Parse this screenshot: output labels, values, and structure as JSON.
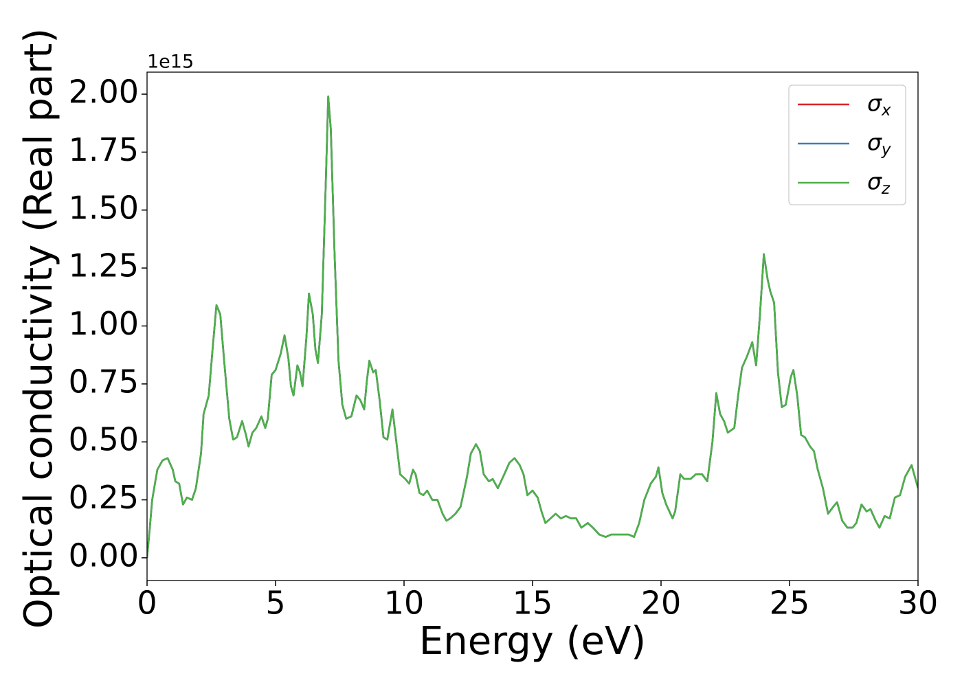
{
  "chart_data": {
    "type": "line",
    "xlabel": "Energy (eV)",
    "ylabel": "Optical conductivity (Real part)",
    "y_offset_text": "1e15",
    "x": [
      0,
      0.1,
      0.2,
      0.4,
      0.6,
      0.8,
      1.0,
      1.1,
      1.25,
      1.4,
      1.55,
      1.75,
      1.9,
      2.1,
      2.2,
      2.4,
      2.55,
      2.7,
      2.85,
      3.0,
      3.2,
      3.35,
      3.5,
      3.7,
      3.85,
      3.95,
      4.1,
      4.25,
      4.45,
      4.6,
      4.7,
      4.85,
      5.0,
      5.2,
      5.35,
      5.5,
      5.6,
      5.7,
      5.85,
      5.95,
      6.05,
      6.2,
      6.3,
      6.45,
      6.55,
      6.65,
      6.8,
      6.95,
      7.05,
      7.15,
      7.3,
      7.45,
      7.6,
      7.75,
      7.95,
      8.15,
      8.3,
      8.45,
      8.55,
      8.65,
      8.8,
      8.9,
      9.05,
      9.2,
      9.35,
      9.55,
      9.7,
      9.85,
      10.05,
      10.2,
      10.35,
      10.45,
      10.6,
      10.75,
      10.9,
      11.1,
      11.3,
      11.5,
      11.65,
      11.8,
      12.0,
      12.2,
      12.45,
      12.6,
      12.8,
      12.95,
      13.1,
      13.3,
      13.45,
      13.65,
      13.9,
      14.1,
      14.3,
      14.5,
      14.65,
      14.8,
      15.0,
      15.2,
      15.35,
      15.5,
      15.7,
      15.9,
      16.1,
      16.3,
      16.5,
      16.7,
      16.9,
      17.15,
      17.35,
      17.6,
      17.85,
      18.05,
      18.3,
      18.55,
      18.75,
      18.95,
      19.15,
      19.35,
      19.6,
      19.8,
      19.9,
      20.05,
      20.2,
      20.45,
      20.55,
      20.75,
      20.9,
      21.15,
      21.35,
      21.6,
      21.8,
      22.0,
      22.15,
      22.3,
      22.45,
      22.6,
      22.85,
      23.0,
      23.15,
      23.35,
      23.55,
      23.7,
      23.85,
      24.0,
      24.15,
      24.25,
      24.4,
      24.55,
      24.7,
      24.85,
      25.05,
      25.15,
      25.3,
      25.45,
      25.6,
      25.8,
      25.95,
      26.1,
      26.3,
      26.5,
      26.7,
      26.85,
      27.05,
      27.25,
      27.45,
      27.6,
      27.8,
      28.0,
      28.15,
      28.35,
      28.5,
      28.7,
      28.9,
      29.1,
      29.3,
      29.5,
      29.75,
      30.0
    ],
    "series": [
      {
        "name": "σx",
        "color": "#d62728",
        "values": [
          0.0,
          0.12,
          0.25,
          0.38,
          0.42,
          0.43,
          0.38,
          0.33,
          0.32,
          0.23,
          0.26,
          0.25,
          0.3,
          0.45,
          0.62,
          0.7,
          0.9,
          1.09,
          1.05,
          0.85,
          0.6,
          0.51,
          0.52,
          0.59,
          0.53,
          0.48,
          0.54,
          0.56,
          0.61,
          0.56,
          0.6,
          0.79,
          0.81,
          0.88,
          0.96,
          0.86,
          0.74,
          0.7,
          0.83,
          0.8,
          0.74,
          0.95,
          1.14,
          1.05,
          0.9,
          0.84,
          1.05,
          1.6,
          1.99,
          1.85,
          1.3,
          0.85,
          0.66,
          0.6,
          0.61,
          0.7,
          0.68,
          0.64,
          0.76,
          0.85,
          0.8,
          0.81,
          0.68,
          0.52,
          0.51,
          0.64,
          0.5,
          0.36,
          0.34,
          0.32,
          0.38,
          0.36,
          0.28,
          0.27,
          0.29,
          0.25,
          0.25,
          0.19,
          0.16,
          0.17,
          0.19,
          0.22,
          0.35,
          0.45,
          0.49,
          0.46,
          0.36,
          0.33,
          0.34,
          0.3,
          0.36,
          0.41,
          0.43,
          0.4,
          0.36,
          0.27,
          0.29,
          0.26,
          0.2,
          0.15,
          0.17,
          0.19,
          0.17,
          0.18,
          0.17,
          0.17,
          0.13,
          0.15,
          0.13,
          0.1,
          0.09,
          0.1,
          0.1,
          0.1,
          0.1,
          0.09,
          0.15,
          0.25,
          0.32,
          0.35,
          0.39,
          0.28,
          0.23,
          0.17,
          0.2,
          0.36,
          0.34,
          0.34,
          0.36,
          0.36,
          0.33,
          0.5,
          0.71,
          0.62,
          0.59,
          0.54,
          0.56,
          0.7,
          0.82,
          0.87,
          0.93,
          0.83,
          1.05,
          1.31,
          1.2,
          1.15,
          1.1,
          0.8,
          0.65,
          0.66,
          0.78,
          0.81,
          0.7,
          0.53,
          0.52,
          0.48,
          0.46,
          0.38,
          0.3,
          0.19,
          0.22,
          0.24,
          0.16,
          0.13,
          0.13,
          0.15,
          0.23,
          0.2,
          0.21,
          0.16,
          0.13,
          0.18,
          0.17,
          0.26,
          0.27,
          0.35,
          0.4,
          0.3
        ]
      },
      {
        "name": "σy",
        "color": "#3a7dbd",
        "values": [
          0.0,
          0.12,
          0.25,
          0.38,
          0.42,
          0.43,
          0.38,
          0.33,
          0.32,
          0.23,
          0.26,
          0.25,
          0.3,
          0.45,
          0.62,
          0.7,
          0.9,
          1.09,
          1.05,
          0.85,
          0.6,
          0.51,
          0.52,
          0.59,
          0.53,
          0.48,
          0.54,
          0.56,
          0.61,
          0.56,
          0.6,
          0.79,
          0.81,
          0.88,
          0.96,
          0.86,
          0.74,
          0.7,
          0.83,
          0.8,
          0.74,
          0.95,
          1.14,
          1.05,
          0.9,
          0.84,
          1.05,
          1.6,
          1.99,
          1.85,
          1.3,
          0.85,
          0.66,
          0.6,
          0.61,
          0.7,
          0.68,
          0.64,
          0.76,
          0.85,
          0.8,
          0.81,
          0.68,
          0.52,
          0.51,
          0.64,
          0.5,
          0.36,
          0.34,
          0.32,
          0.38,
          0.36,
          0.28,
          0.27,
          0.29,
          0.25,
          0.25,
          0.19,
          0.16,
          0.17,
          0.19,
          0.22,
          0.35,
          0.45,
          0.49,
          0.46,
          0.36,
          0.33,
          0.34,
          0.3,
          0.36,
          0.41,
          0.43,
          0.4,
          0.36,
          0.27,
          0.29,
          0.26,
          0.2,
          0.15,
          0.17,
          0.19,
          0.17,
          0.18,
          0.17,
          0.17,
          0.13,
          0.15,
          0.13,
          0.1,
          0.09,
          0.1,
          0.1,
          0.1,
          0.1,
          0.09,
          0.15,
          0.25,
          0.32,
          0.35,
          0.39,
          0.28,
          0.23,
          0.17,
          0.2,
          0.36,
          0.34,
          0.34,
          0.36,
          0.36,
          0.33,
          0.5,
          0.71,
          0.62,
          0.59,
          0.54,
          0.56,
          0.7,
          0.82,
          0.87,
          0.93,
          0.83,
          1.05,
          1.31,
          1.2,
          1.15,
          1.1,
          0.8,
          0.65,
          0.66,
          0.78,
          0.81,
          0.7,
          0.53,
          0.52,
          0.48,
          0.46,
          0.38,
          0.3,
          0.19,
          0.22,
          0.24,
          0.16,
          0.13,
          0.13,
          0.15,
          0.23,
          0.2,
          0.21,
          0.16,
          0.13,
          0.18,
          0.17,
          0.26,
          0.27,
          0.35,
          0.4,
          0.3
        ]
      },
      {
        "name": "σz",
        "color": "#4daf4a",
        "values": [
          0.0,
          0.12,
          0.25,
          0.38,
          0.42,
          0.43,
          0.38,
          0.33,
          0.32,
          0.23,
          0.26,
          0.25,
          0.3,
          0.45,
          0.62,
          0.7,
          0.9,
          1.09,
          1.05,
          0.85,
          0.6,
          0.51,
          0.52,
          0.59,
          0.53,
          0.48,
          0.54,
          0.56,
          0.61,
          0.56,
          0.6,
          0.79,
          0.81,
          0.88,
          0.96,
          0.86,
          0.74,
          0.7,
          0.83,
          0.8,
          0.74,
          0.95,
          1.14,
          1.05,
          0.9,
          0.84,
          1.05,
          1.6,
          1.99,
          1.85,
          1.3,
          0.85,
          0.66,
          0.6,
          0.61,
          0.7,
          0.68,
          0.64,
          0.76,
          0.85,
          0.8,
          0.81,
          0.68,
          0.52,
          0.51,
          0.64,
          0.5,
          0.36,
          0.34,
          0.32,
          0.38,
          0.36,
          0.28,
          0.27,
          0.29,
          0.25,
          0.25,
          0.19,
          0.16,
          0.17,
          0.19,
          0.22,
          0.35,
          0.45,
          0.49,
          0.46,
          0.36,
          0.33,
          0.34,
          0.3,
          0.36,
          0.41,
          0.43,
          0.4,
          0.36,
          0.27,
          0.29,
          0.26,
          0.2,
          0.15,
          0.17,
          0.19,
          0.17,
          0.18,
          0.17,
          0.17,
          0.13,
          0.15,
          0.13,
          0.1,
          0.09,
          0.1,
          0.1,
          0.1,
          0.1,
          0.09,
          0.15,
          0.25,
          0.32,
          0.35,
          0.39,
          0.28,
          0.23,
          0.17,
          0.2,
          0.36,
          0.34,
          0.34,
          0.36,
          0.36,
          0.33,
          0.5,
          0.71,
          0.62,
          0.59,
          0.54,
          0.56,
          0.7,
          0.82,
          0.87,
          0.93,
          0.83,
          1.05,
          1.31,
          1.2,
          1.15,
          1.1,
          0.8,
          0.65,
          0.66,
          0.78,
          0.81,
          0.7,
          0.53,
          0.52,
          0.48,
          0.46,
          0.38,
          0.3,
          0.19,
          0.22,
          0.24,
          0.16,
          0.13,
          0.13,
          0.15,
          0.23,
          0.2,
          0.21,
          0.16,
          0.13,
          0.18,
          0.17,
          0.26,
          0.27,
          0.35,
          0.4,
          0.3
        ]
      }
    ],
    "xlim": [
      0,
      30
    ],
    "xticks": [
      0,
      5,
      10,
      15,
      20,
      25,
      30
    ],
    "ylim": [
      -0.098,
      2.095
    ],
    "yticks": [
      {
        "value": 0,
        "label": "0.00"
      },
      {
        "value": 0.25,
        "label": "0.25"
      },
      {
        "value": 0.5,
        "label": "0.50"
      },
      {
        "value": 0.75,
        "label": "0.75"
      },
      {
        "value": 1,
        "label": "1.00"
      },
      {
        "value": 1.25,
        "label": "1.25"
      },
      {
        "value": 1.5,
        "label": "1.50"
      },
      {
        "value": 1.75,
        "label": "1.75"
      },
      {
        "value": 2,
        "label": "2.00"
      }
    ],
    "legend": "upper right",
    "grid": false
  }
}
